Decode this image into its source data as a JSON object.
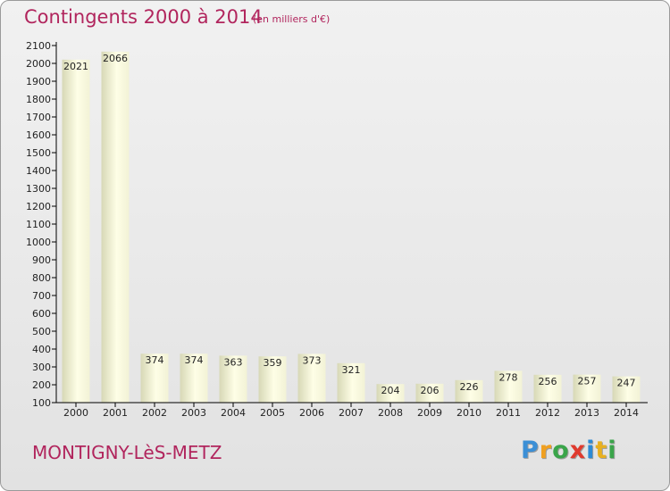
{
  "chart_data": {
    "type": "bar",
    "title": "Contingents 2000 à 2014",
    "subtitle": "(en milliers d'€)",
    "categories": [
      "2000",
      "2001",
      "2002",
      "2003",
      "2004",
      "2005",
      "2006",
      "2007",
      "2008",
      "2009",
      "2010",
      "2011",
      "2012",
      "2013",
      "2014"
    ],
    "values": [
      2021,
      2066,
      374,
      374,
      363,
      359,
      373,
      321,
      204,
      206,
      226,
      278,
      256,
      257,
      247
    ],
    "ylim": [
      100,
      2100
    ],
    "yticks": [
      100,
      200,
      300,
      400,
      500,
      600,
      700,
      800,
      900,
      1000,
      1100,
      1200,
      1300,
      1400,
      1500,
      1600,
      1700,
      1800,
      1900,
      2000,
      2100
    ],
    "grid": false,
    "colors": {
      "title": "#b1255d",
      "bar_light": "#fefee6",
      "bar_dark": "#d7d8b6",
      "axis": "#000000"
    }
  },
  "footer": {
    "place": "MONTIGNY-LèS-METZ"
  },
  "logo": {
    "letters": [
      "P",
      "r",
      "o",
      "x",
      "i",
      "t",
      "i"
    ],
    "colors": [
      "#3b8fd6",
      "#f0a020",
      "#3aa54a",
      "#e03a2e",
      "#2d8ad4",
      "#e8b020",
      "#3aa54a"
    ]
  }
}
